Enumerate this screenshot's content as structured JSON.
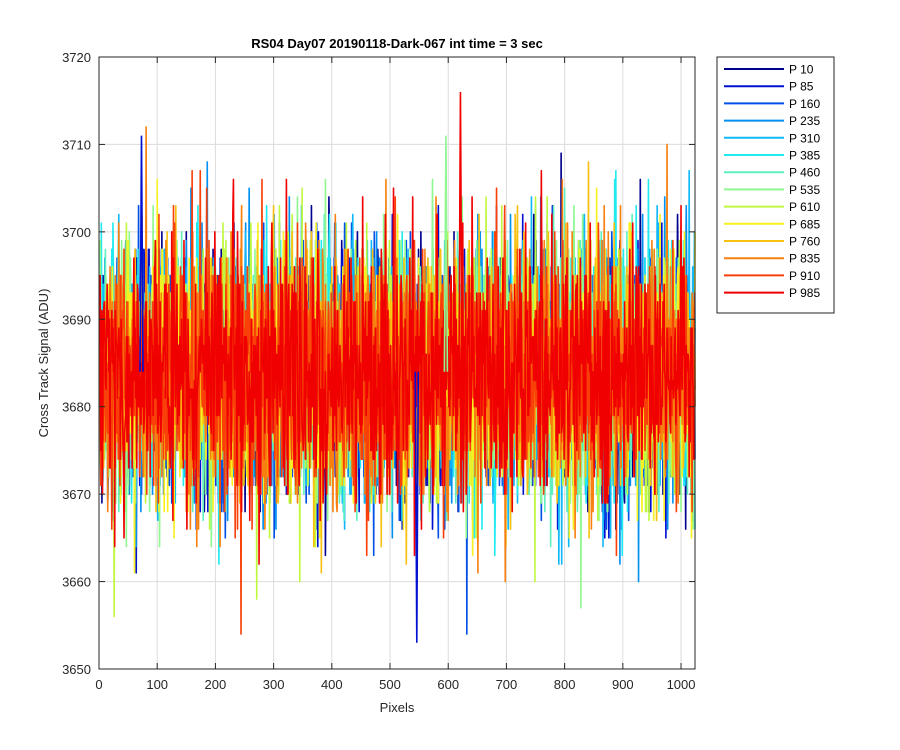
{
  "chart_data": {
    "type": "line",
    "title": "RS04 Day07 20190118-Dark-067 int time = 3 sec",
    "xlabel": "Pixels",
    "ylabel": "Cross Track Signal (ADU)",
    "xlim": [
      0,
      1024
    ],
    "ylim": [
      3650,
      3720
    ],
    "xticks": [
      0,
      100,
      200,
      300,
      400,
      500,
      600,
      700,
      800,
      900,
      1000
    ],
    "yticks": [
      3650,
      3660,
      3670,
      3680,
      3690,
      3700,
      3710,
      3720
    ],
    "grid": true,
    "legend_position": "outside-top-right",
    "signal_mean": 3684,
    "signal_spread": 7,
    "signal_min": 3653,
    "signal_max": 3716,
    "series": [
      {
        "name": "P 10",
        "color": "#00008f"
      },
      {
        "name": "P 85",
        "color": "#0010d0"
      },
      {
        "name": "P 160",
        "color": "#0050e6"
      },
      {
        "name": "P 235",
        "color": "#0090f0"
      },
      {
        "name": "P 310",
        "color": "#10b8f8"
      },
      {
        "name": "P 385",
        "color": "#20eaf0"
      },
      {
        "name": "P 460",
        "color": "#60f0c0"
      },
      {
        "name": "P 535",
        "color": "#90f890"
      },
      {
        "name": "P 610",
        "color": "#c0f840"
      },
      {
        "name": "P 685",
        "color": "#f8f020"
      },
      {
        "name": "P 760",
        "color": "#f8c010"
      },
      {
        "name": "P 835",
        "color": "#f88010"
      },
      {
        "name": "P 910",
        "color": "#f84008"
      },
      {
        "name": "P 985",
        "color": "#f00000"
      }
    ]
  }
}
